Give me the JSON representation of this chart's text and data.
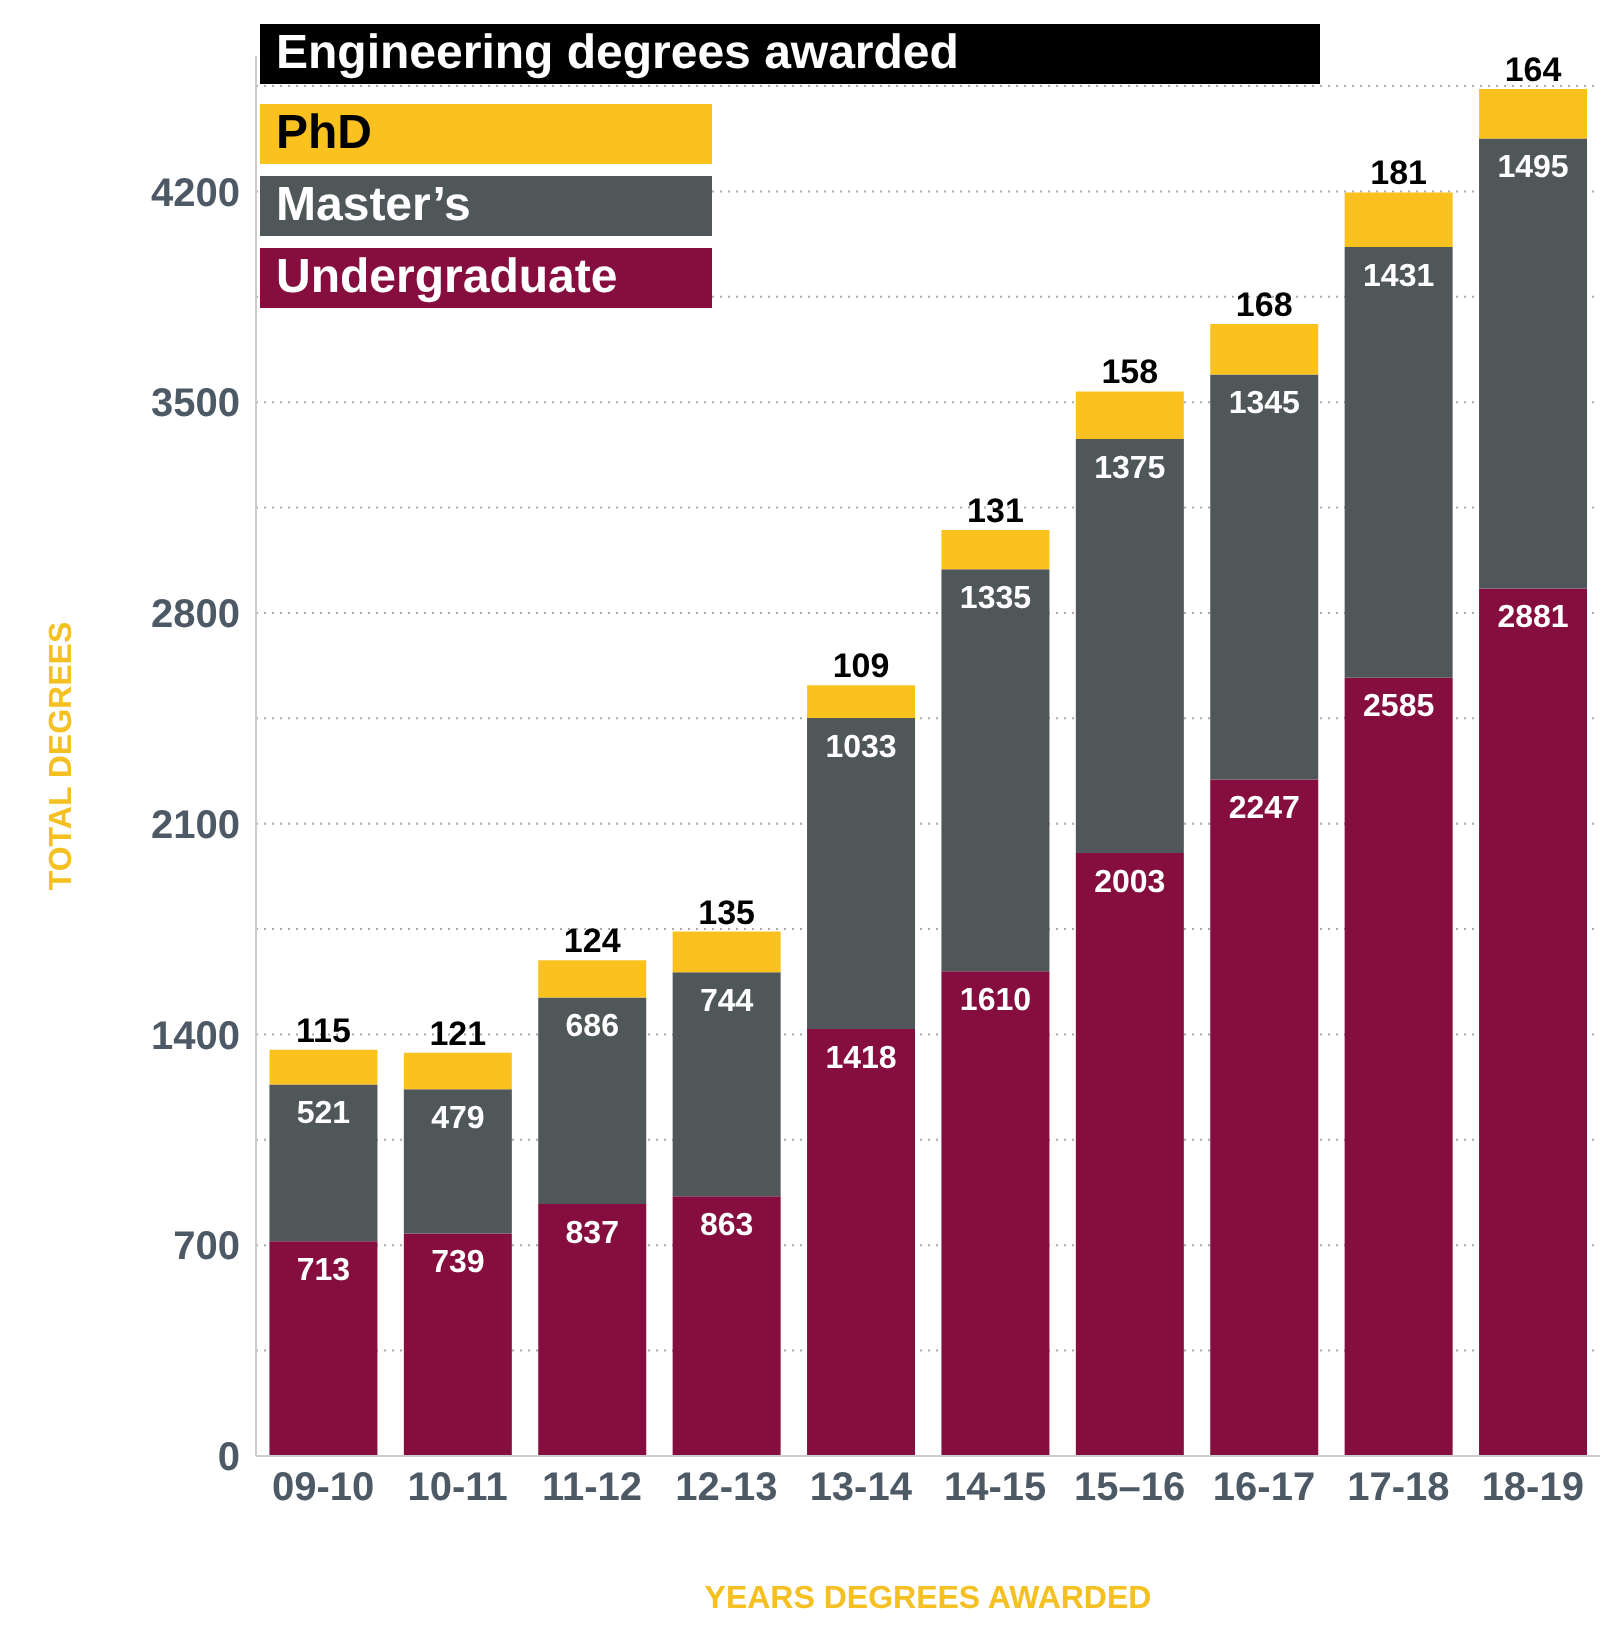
{
  "chart_data": {
    "type": "bar",
    "title": "Engineering degrees awarded",
    "xlabel": "YEARS DEGREES AWARDED",
    "ylabel": "TOTAL DEGREES",
    "categories": [
      "09-10",
      "10-11",
      "11-12",
      "12-13",
      "13-14",
      "14-15",
      "15–16",
      "16-17",
      "17-18",
      "18-19"
    ],
    "stacked": true,
    "series": [
      {
        "name": "Undergraduate",
        "color": "#850e3f",
        "values": [
          713,
          739,
          837,
          863,
          1418,
          1610,
          2003,
          2247,
          2585,
          2881
        ]
      },
      {
        "name": "Master’s",
        "color": "#4f5759",
        "values": [
          521,
          479,
          686,
          744,
          1033,
          1335,
          1375,
          1345,
          1431,
          1495
        ]
      },
      {
        "name": "PhD",
        "color": "#fbc21f",
        "values": [
          115,
          121,
          124,
          135,
          109,
          131,
          158,
          168,
          181,
          164
        ]
      }
    ],
    "ylim": [
      0,
      4650
    ],
    "yticks": [
      0,
      {
        "value": 350,
        "label": null
      },
      700,
      {
        "value": 1050,
        "label": null
      },
      1400,
      {
        "value": 1750,
        "label": null
      },
      2100,
      {
        "value": 2450,
        "label": null
      },
      2800,
      {
        "value": 3150,
        "label": null
      },
      3500,
      {
        "value": 3850,
        "label": null
      },
      4200,
      {
        "value": 4550,
        "label": null
      }
    ],
    "grid": "y",
    "legend": "top left",
    "data_labels": true
  }
}
